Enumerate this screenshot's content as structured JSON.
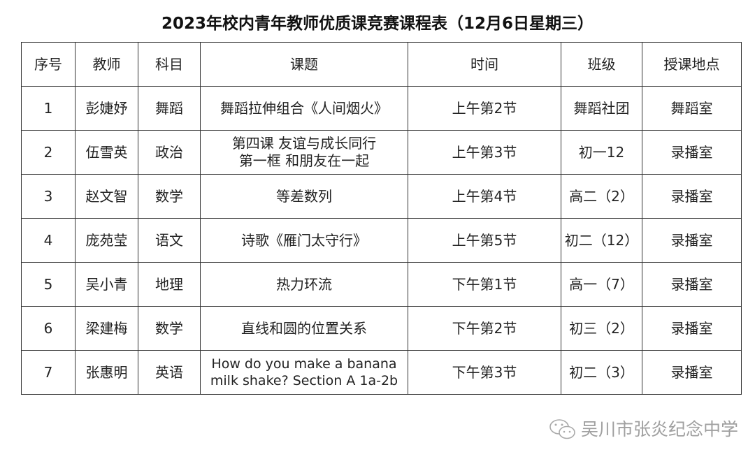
{
  "title": "2023年校内青年教师优质课竞赛课程表（12月6日星期三）",
  "headers": [
    "序号",
    "教师",
    "科目",
    "课题",
    "时间",
    "班级",
    "授课地点"
  ],
  "rows": [
    {
      "no": "1",
      "teacher": "彭婕妤",
      "subject": "舞蹈",
      "topic": [
        "舞蹈拉伸组合《人间烟火》"
      ],
      "time": "上午第2节",
      "class": "舞蹈社团",
      "room": "舞蹈室"
    },
    {
      "no": "2",
      "teacher": "伍雪英",
      "subject": "政治",
      "topic": [
        "第四课  友谊与成长同行",
        "第一框  和朋友在一起"
      ],
      "time": "上午第3节",
      "class": "初一12",
      "room": "录播室"
    },
    {
      "no": "3",
      "teacher": "赵文智",
      "subject": "数学",
      "topic": [
        "等差数列"
      ],
      "time": "上午第4节",
      "class": "高二（2）",
      "room": "录播室"
    },
    {
      "no": "4",
      "teacher": "庞苑莹",
      "subject": "语文",
      "topic": [
        "诗歌《雁门太守行》"
      ],
      "time": "上午第5节",
      "class": "初二（12）",
      "room": "录播室"
    },
    {
      "no": "5",
      "teacher": "吴小青",
      "subject": "地理",
      "topic": [
        "热力环流"
      ],
      "time": "下午第1节",
      "class": "高一（7）",
      "room": "录播室"
    },
    {
      "no": "6",
      "teacher": "梁建梅",
      "subject": "数学",
      "topic": [
        "直线和圆的位置关系"
      ],
      "time": "下午第2节",
      "class": "初三（2）",
      "room": "录播室"
    },
    {
      "no": "7",
      "teacher": "张惠明",
      "subject": "英语",
      "topic": [
        "How do you  make a banana",
        "milk shake?  Section A 1a-2b"
      ],
      "time": "下午第3节",
      "class": "初二（3）",
      "room": "录播室"
    }
  ],
  "watermark": {
    "icon": "wechat-icon",
    "text": "吴川市张炎纪念中学"
  }
}
